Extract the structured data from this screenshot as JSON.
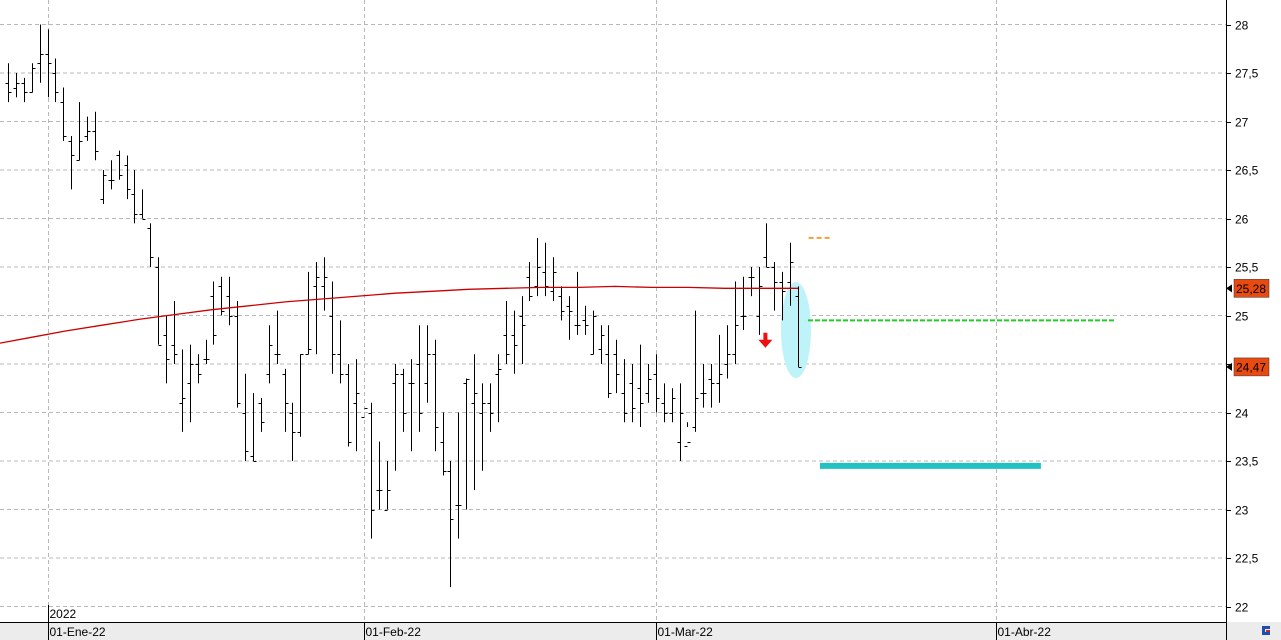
{
  "chart_data": {
    "type": "ohlc",
    "title": "",
    "xlabel": "",
    "ylabel": "",
    "ylim": [
      21.85,
      28.15
    ],
    "y_ticks": [
      28,
      27.5,
      27,
      26.5,
      26,
      25.5,
      25,
      24.5,
      24,
      23.5,
      23,
      22.5,
      22
    ],
    "y_tick_labels": [
      "28",
      "27,5",
      "27",
      "26,5",
      "26",
      "25,5",
      "25",
      "24,5",
      "24",
      "23,5",
      "23",
      "22,5",
      "22"
    ],
    "x_labels": [
      {
        "label": "01-Ene-22",
        "bar": 5
      },
      {
        "label": "01-Feb-22",
        "bar": 45
      },
      {
        "label": "01-Mar-22",
        "bar": 82
      },
      {
        "label": "01-Abr-22",
        "bar": 125
      }
    ],
    "year_label": {
      "label": "2022",
      "bar": 5
    },
    "grid": true,
    "bar_color": "#000000",
    "bars": [
      [
        27.4,
        27.6,
        27.2,
        27.3
      ],
      [
        27.35,
        27.5,
        27.25,
        27.4
      ],
      [
        27.4,
        27.45,
        27.2,
        27.3
      ],
      [
        27.3,
        27.6,
        27.3,
        27.55
      ],
      [
        27.6,
        28.0,
        27.4,
        27.7
      ],
      [
        27.7,
        27.95,
        27.25,
        27.6
      ],
      [
        27.5,
        27.65,
        27.2,
        27.3
      ],
      [
        27.2,
        27.35,
        26.8,
        26.85
      ],
      [
        26.8,
        26.85,
        26.3,
        26.65
      ],
      [
        26.6,
        27.2,
        26.6,
        26.8
      ],
      [
        26.85,
        27.05,
        26.8,
        26.9
      ],
      [
        26.9,
        27.1,
        26.6,
        26.7
      ],
      [
        26.2,
        26.5,
        26.15,
        26.45
      ],
      [
        26.4,
        26.6,
        26.3,
        26.4
      ],
      [
        26.65,
        26.7,
        26.4,
        26.45
      ],
      [
        26.55,
        26.65,
        26.2,
        26.3
      ],
      [
        26.25,
        26.5,
        25.95,
        26.05
      ],
      [
        26.05,
        26.3,
        26.0,
        26.0
      ],
      [
        25.9,
        25.95,
        25.5,
        25.6
      ],
      [
        25.5,
        25.6,
        24.7,
        24.7
      ],
      [
        24.8,
        25.0,
        24.3,
        24.55
      ],
      [
        24.7,
        25.15,
        24.5,
        24.6
      ],
      [
        24.1,
        24.65,
        23.8,
        24.15
      ],
      [
        24.3,
        24.7,
        23.9,
        24.5
      ],
      [
        24.5,
        24.6,
        24.3,
        24.4
      ],
      [
        24.55,
        24.75,
        24.5,
        24.55
      ],
      [
        25.2,
        25.35,
        24.7,
        24.8
      ],
      [
        25.3,
        25.4,
        25.0,
        25.05
      ],
      [
        25.2,
        25.4,
        24.9,
        25.0
      ],
      [
        25.0,
        25.15,
        24.05,
        24.1
      ],
      [
        24.0,
        24.4,
        23.5,
        23.6
      ],
      [
        23.55,
        24.2,
        23.5,
        23.5
      ],
      [
        24.1,
        24.15,
        23.8,
        23.9
      ],
      [
        24.4,
        24.9,
        24.3,
        24.7
      ],
      [
        24.6,
        25.05,
        24.5,
        24.6
      ],
      [
        24.4,
        24.45,
        23.8,
        24.1
      ],
      [
        24.0,
        24.1,
        23.5,
        23.8
      ],
      [
        23.8,
        24.6,
        23.75,
        24.6
      ],
      [
        24.6,
        25.45,
        24.6,
        24.65
      ],
      [
        25.3,
        25.55,
        24.6,
        25.4
      ],
      [
        25.3,
        25.6,
        25.05,
        25.4
      ],
      [
        25.0,
        25.35,
        24.4,
        24.6
      ],
      [
        24.6,
        24.95,
        24.3,
        24.4
      ],
      [
        24.4,
        24.5,
        23.65,
        23.7
      ],
      [
        24.1,
        24.55,
        23.6,
        24.2
      ],
      [
        23.95,
        24.3,
        24.3,
        24.05
      ],
      [
        24.0,
        24.1,
        22.7,
        23.0
      ],
      [
        23.2,
        23.7,
        23.0,
        23.2
      ],
      [
        23.0,
        23.5,
        23.0,
        23.2
      ],
      [
        24.3,
        24.5,
        23.4,
        24.4
      ],
      [
        24.4,
        24.45,
        23.8,
        24.0
      ],
      [
        24.3,
        24.55,
        23.6,
        24.3
      ],
      [
        24.5,
        24.9,
        23.8,
        24.0
      ],
      [
        24.3,
        24.9,
        24.1,
        24.6
      ],
      [
        24.6,
        24.75,
        23.6,
        23.85
      ],
      [
        23.7,
        24.0,
        23.35,
        23.4
      ],
      [
        23.4,
        23.5,
        22.2,
        22.9
      ],
      [
        23.05,
        24.0,
        22.7,
        23.05
      ],
      [
        24.3,
        24.35,
        23.0,
        24.35
      ],
      [
        24.1,
        24.6,
        23.2,
        24.2
      ],
      [
        24.0,
        24.3,
        23.4,
        24.1
      ],
      [
        24.1,
        24.3,
        23.8,
        24.0
      ],
      [
        24.4,
        24.6,
        23.9,
        24.45
      ],
      [
        24.8,
        25.15,
        24.5,
        24.6
      ],
      [
        24.8,
        25.05,
        24.4,
        24.7
      ],
      [
        25.0,
        25.2,
        24.5,
        24.9
      ],
      [
        25.4,
        25.55,
        25.15,
        25.2
      ],
      [
        25.3,
        25.8,
        25.2,
        25.5
      ],
      [
        25.45,
        25.75,
        25.2,
        25.3
      ],
      [
        25.25,
        25.6,
        25.15,
        25.45
      ],
      [
        25.2,
        25.3,
        24.95,
        25.05
      ],
      [
        25.1,
        25.2,
        24.75,
        25.05
      ],
      [
        24.9,
        25.45,
        24.8,
        24.9
      ],
      [
        24.95,
        25.1,
        24.8,
        24.9
      ],
      [
        24.6,
        25.05,
        24.6,
        25.0
      ],
      [
        24.65,
        24.9,
        24.5,
        24.8
      ],
      [
        24.6,
        24.9,
        24.15,
        24.2
      ],
      [
        24.6,
        24.75,
        24.2,
        24.4
      ],
      [
        24.2,
        24.55,
        23.9,
        24.0
      ],
      [
        24.3,
        24.5,
        23.9,
        24.05
      ],
      [
        24.25,
        24.7,
        23.85,
        24.1
      ],
      [
        24.2,
        24.5,
        24.1,
        24.35
      ],
      [
        24.4,
        24.6,
        24.0,
        24.15
      ],
      [
        24.1,
        24.3,
        23.9,
        24.0
      ],
      [
        24.0,
        24.25,
        23.9,
        24.15
      ],
      [
        23.7,
        24.3,
        23.5,
        24.0
      ],
      [
        23.65,
        23.9,
        23.85,
        23.7
      ],
      [
        23.85,
        25.05,
        23.8,
        24.15
      ],
      [
        24.2,
        24.5,
        24.05,
        24.2
      ],
      [
        24.35,
        24.5,
        24.05,
        24.3
      ],
      [
        24.3,
        24.8,
        24.1,
        24.4
      ],
      [
        24.5,
        24.9,
        24.35,
        24.6
      ],
      [
        24.6,
        25.35,
        24.5,
        24.9
      ],
      [
        25.0,
        25.4,
        24.85,
        25.0
      ],
      [
        25.4,
        25.5,
        25.2,
        25.4
      ],
      [
        25.0,
        25.5,
        24.8,
        25.3
      ],
      [
        25.6,
        25.95,
        25.5,
        25.5
      ],
      [
        25.5,
        25.55,
        25.05,
        25.35
      ],
      [
        25.35,
        25.45,
        24.95,
        25.25
      ],
      [
        25.35,
        25.75,
        25.1,
        25.55
      ],
      [
        25.2,
        25.3,
        24.47,
        24.47
      ]
    ],
    "moving_average": {
      "color": "#cc0000",
      "values": [
        24.7,
        24.77,
        24.84,
        24.9,
        24.96,
        25.01,
        25.06,
        25.1,
        25.14,
        25.17,
        25.2,
        25.23,
        25.25,
        25.27,
        25.28,
        25.29,
        25.29,
        25.3,
        25.29,
        25.29,
        25.28,
        25.28,
        25.28
      ]
    },
    "annotations": {
      "resistance_color": "#f0a040",
      "resistance_value": 25.8,
      "support_color": "#22c2c2",
      "support_value": 23.45,
      "breakdown_color": "#22cc22",
      "breakdown_value": 24.95,
      "arrow_color": "#ee1111",
      "ellipse_color": "#bff3fa"
    },
    "price_labels": [
      {
        "text": "25,28",
        "value": 25.28,
        "color": "#e84a10"
      },
      {
        "text": "24,47",
        "value": 24.47,
        "color": "#e84a10"
      }
    ]
  }
}
